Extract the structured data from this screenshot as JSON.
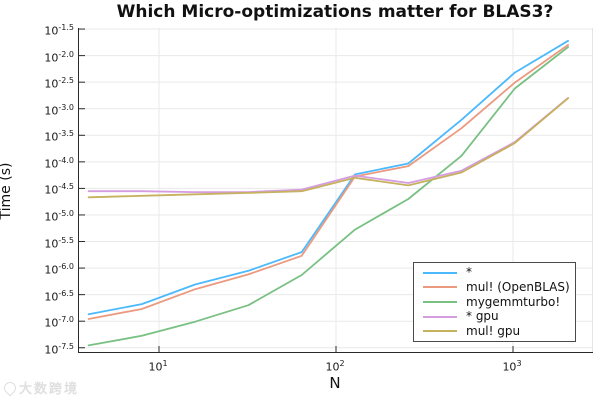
{
  "watermark": {
    "text": "大数跨境"
  },
  "chart_data": {
    "type": "line",
    "title": "Which Micro-optimizations matter for BLAS3?",
    "xlabel": "N",
    "ylabel": "Time (s)",
    "x_scale": "log10",
    "y_scale": "log10",
    "grid": true,
    "legend_position": "bottom-right",
    "xlim_log10": [
      0.548,
      3.452
    ],
    "ylim_log10": [
      -7.58,
      -1.48
    ],
    "x_tick_exponents": [
      "1",
      "2",
      "3"
    ],
    "y_tick_exponents": [
      "-1.5",
      "-2.0",
      "-2.5",
      "-3.0",
      "-3.5",
      "-4.0",
      "-4.5",
      "-5.0",
      "-5.5",
      "-6.0",
      "-6.5",
      "-7.0",
      "-7.5"
    ],
    "x": [
      4,
      8,
      16,
      32,
      64,
      128,
      256,
      512,
      1024,
      2048
    ],
    "series": [
      {
        "name": "*",
        "color": "#4CB9FC",
        "seconds": [
          1.35e-07,
          2.1e-07,
          4.9e-07,
          8.9e-07,
          2e-06,
          5.8e-05,
          9.3e-05,
          0.00062,
          0.0048,
          0.019
        ]
      },
      {
        "name": "mul! (OpenBLAS)",
        "color": "#EB9A7F",
        "seconds": [
          1.1e-07,
          1.7e-07,
          4e-07,
          7.6e-07,
          1.7e-06,
          5.3e-05,
          8.3e-05,
          0.00043,
          0.0031,
          0.016
        ]
      },
      {
        "name": "mygemmturbo!",
        "color": "#79C083",
        "seconds": [
          3.5e-08,
          5.3e-08,
          9.8e-08,
          2e-07,
          7.4e-07,
          5.3e-06,
          2e-05,
          0.00013,
          0.0024,
          0.0145
        ]
      },
      {
        "name": "* gpu",
        "color": "#D59CE0",
        "seconds": [
          2.8e-05,
          2.8e-05,
          2.7e-05,
          2.7e-05,
          3e-05,
          5.5e-05,
          4e-05,
          6.8e-05,
          0.000235,
          0.0016
        ]
      },
      {
        "name": "mul! gpu",
        "color": "#C6B15E",
        "seconds": [
          2.15e-05,
          2.3e-05,
          2.45e-05,
          2.6e-05,
          2.8e-05,
          5e-05,
          3.6e-05,
          6.3e-05,
          0.000225,
          0.00158
        ]
      }
    ]
  }
}
